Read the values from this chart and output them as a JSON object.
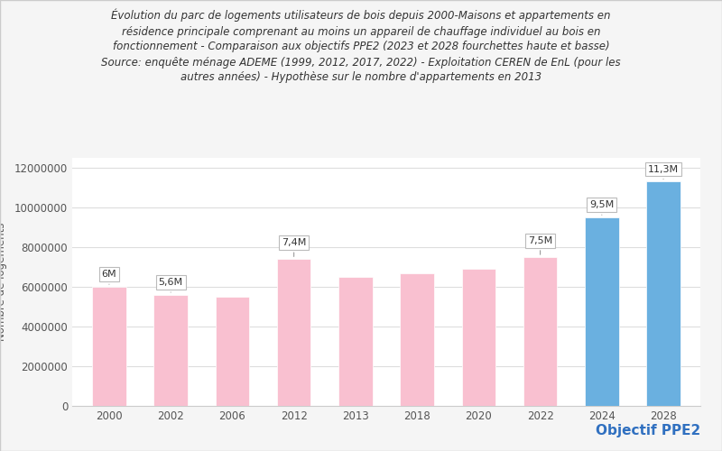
{
  "categories": [
    "2000",
    "2002",
    "2006",
    "2012",
    "2013",
    "2018",
    "2020",
    "2022",
    "2024",
    "2028"
  ],
  "values": [
    6000000,
    5600000,
    5500000,
    7400000,
    6500000,
    6700000,
    6900000,
    7500000,
    9500000,
    11300000
  ],
  "bar_colors": [
    "#f9c0d0",
    "#f9c0d0",
    "#f9c0d0",
    "#f9c0d0",
    "#f9c0d0",
    "#f9c0d0",
    "#f9c0d0",
    "#f9c0d0",
    "#6ab0e0",
    "#6ab0e0"
  ],
  "labels": [
    "6M",
    "5,6M",
    "",
    "7,4M",
    "",
    "",
    "",
    "7,5M",
    "9,5M",
    "11,3M"
  ],
  "label_offsets": [
    400000,
    400000,
    0,
    600000,
    0,
    0,
    0,
    600000,
    400000,
    400000
  ],
  "title_line1": "Évolution du parc de logements utilisateurs de bois depuis 2000-Maisons et appartements en",
  "title_line2": "résidence principale comprenant au moins un appareil de chauffage individuel au bois en",
  "title_line3": "fonctionnement - Comparaison aux objectifs PPE2 (2023 et 2028 fourchettes haute et basse)",
  "title_line4": "Source: enquête ménage ADEME (1999, 2012, 2017, 2022) - Exploitation CEREN de EnL (pour les",
  "title_line5": "autres années) - Hypothèse sur le nombre d'appartements en 2013",
  "ylabel": "Nombre de logements",
  "ylim": [
    0,
    12500000
  ],
  "yticks": [
    0,
    2000000,
    4000000,
    6000000,
    8000000,
    10000000,
    12000000
  ],
  "objectif_text": "Objectif PPE2",
  "objectif_color": "#3070c0",
  "background_color": "#f5f5f5",
  "chart_bg": "#ffffff",
  "grid_color": "#dddddd",
  "title_fontsize": 8.5,
  "axis_label_fontsize": 8.5,
  "tick_fontsize": 8.5,
  "bar_label_fontsize": 8
}
